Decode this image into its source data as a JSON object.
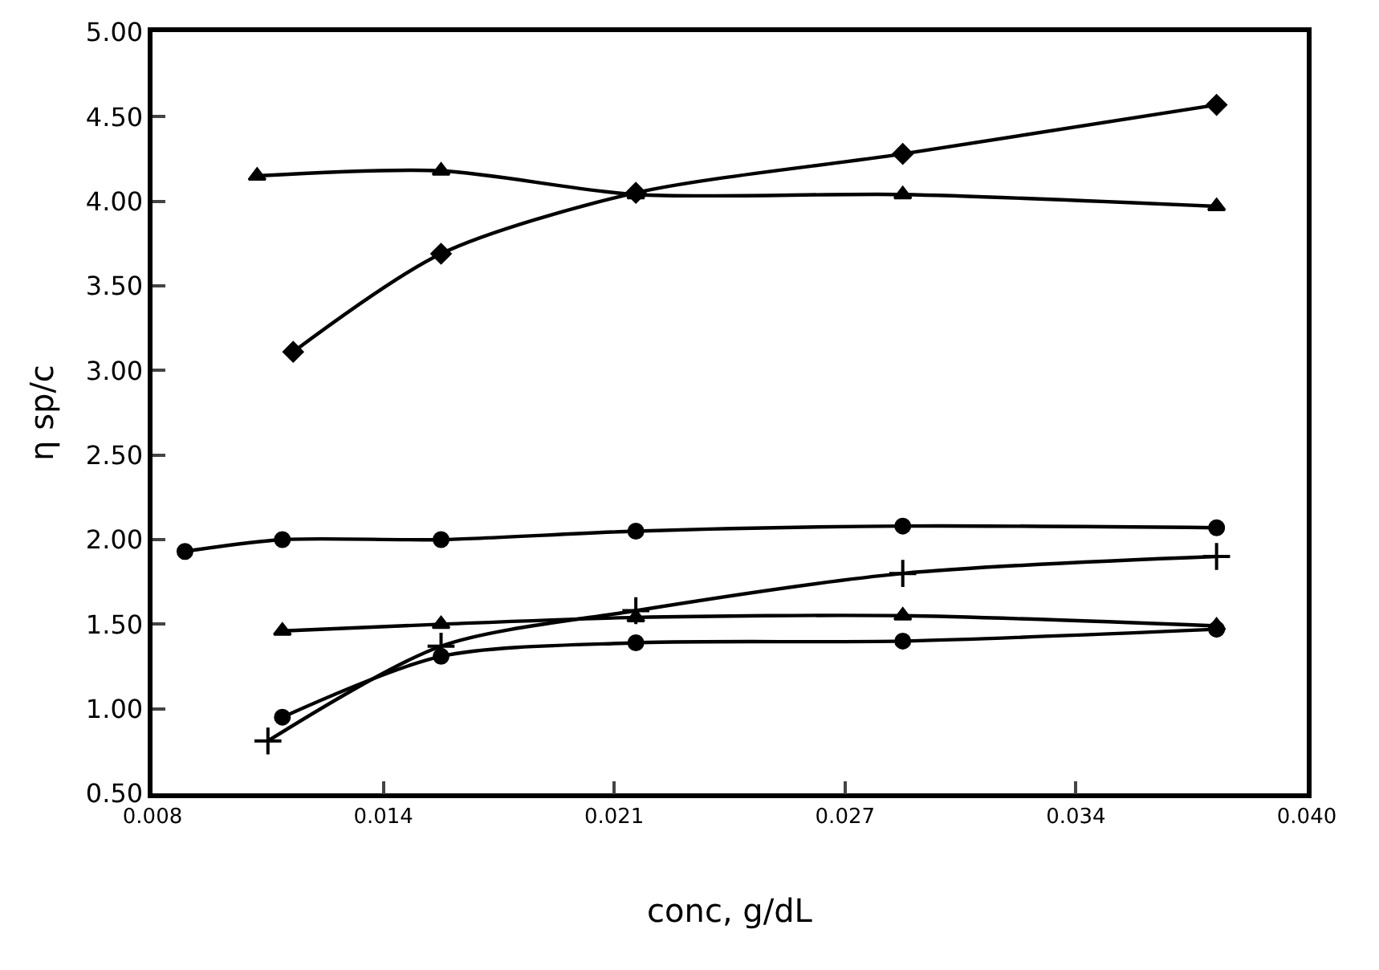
{
  "chart_data": {
    "type": "line",
    "xlabel": "conc, g/dL",
    "ylabel": "η sp/c",
    "xlim": [
      0.008,
      0.04
    ],
    "ylim": [
      0.5,
      5.0
    ],
    "xticks": [
      0.008,
      {
        "value": 0.0144,
        "label": "0.014"
      },
      {
        "value": 0.0208,
        "label": "0.021"
      },
      {
        "value": 0.0272,
        "label": "0.027"
      },
      {
        "value": 0.0336,
        "label": "0.034"
      },
      {
        "value": 0.04,
        "label": "0.040"
      }
    ],
    "yticks": [
      {
        "value": 0.5,
        "label": "0.50"
      },
      {
        "value": 1.0,
        "label": "1.00"
      },
      {
        "value": 1.5,
        "label": "1.50"
      },
      {
        "value": 2.0,
        "label": "2.00"
      },
      {
        "value": 2.5,
        "label": "2.50"
      },
      {
        "value": 3.0,
        "label": "3.00"
      },
      {
        "value": 3.5,
        "label": "3.50"
      },
      {
        "value": 4.0,
        "label": "4.00"
      },
      {
        "value": 4.5,
        "label": "4.50"
      },
      {
        "value": 5.0,
        "label": "5.00"
      }
    ],
    "line_style": "solid",
    "series": [
      {
        "color": "#000000",
        "marker": "triangle",
        "x": [
          0.0109,
          0.016,
          0.0214,
          0.0288,
          0.0375
        ],
        "values": [
          4.15,
          4.18,
          4.04,
          4.04,
          3.97
        ]
      },
      {
        "color": "#000000",
        "marker": "diamond",
        "x": [
          0.0119,
          0.016,
          0.0214,
          0.0288,
          0.0375
        ],
        "values": [
          3.11,
          3.69,
          4.05,
          4.28,
          4.57
        ]
      },
      {
        "color": "#000000",
        "marker": "circle",
        "x": [
          0.0089,
          0.0116,
          0.016,
          0.0214,
          0.0288,
          0.0375
        ],
        "values": [
          1.93,
          2.0,
          2.0,
          2.05,
          2.08,
          2.07
        ]
      },
      {
        "color": "#000000",
        "marker": "triangle",
        "x": [
          0.0116,
          0.016,
          0.0214,
          0.0288,
          0.0375
        ],
        "values": [
          1.46,
          1.5,
          1.54,
          1.55,
          1.49
        ]
      },
      {
        "color": "#000000",
        "marker": "circle",
        "x": [
          0.0116,
          0.016,
          0.0214,
          0.0288,
          0.0375
        ],
        "values": [
          0.95,
          1.31,
          1.39,
          1.4,
          1.47
        ]
      },
      {
        "color": "#000000",
        "marker": "cross",
        "x": [
          0.0112,
          0.016,
          0.0214,
          0.0288,
          0.0375
        ],
        "values": [
          0.81,
          1.37,
          1.58,
          1.8,
          1.9
        ]
      }
    ]
  }
}
